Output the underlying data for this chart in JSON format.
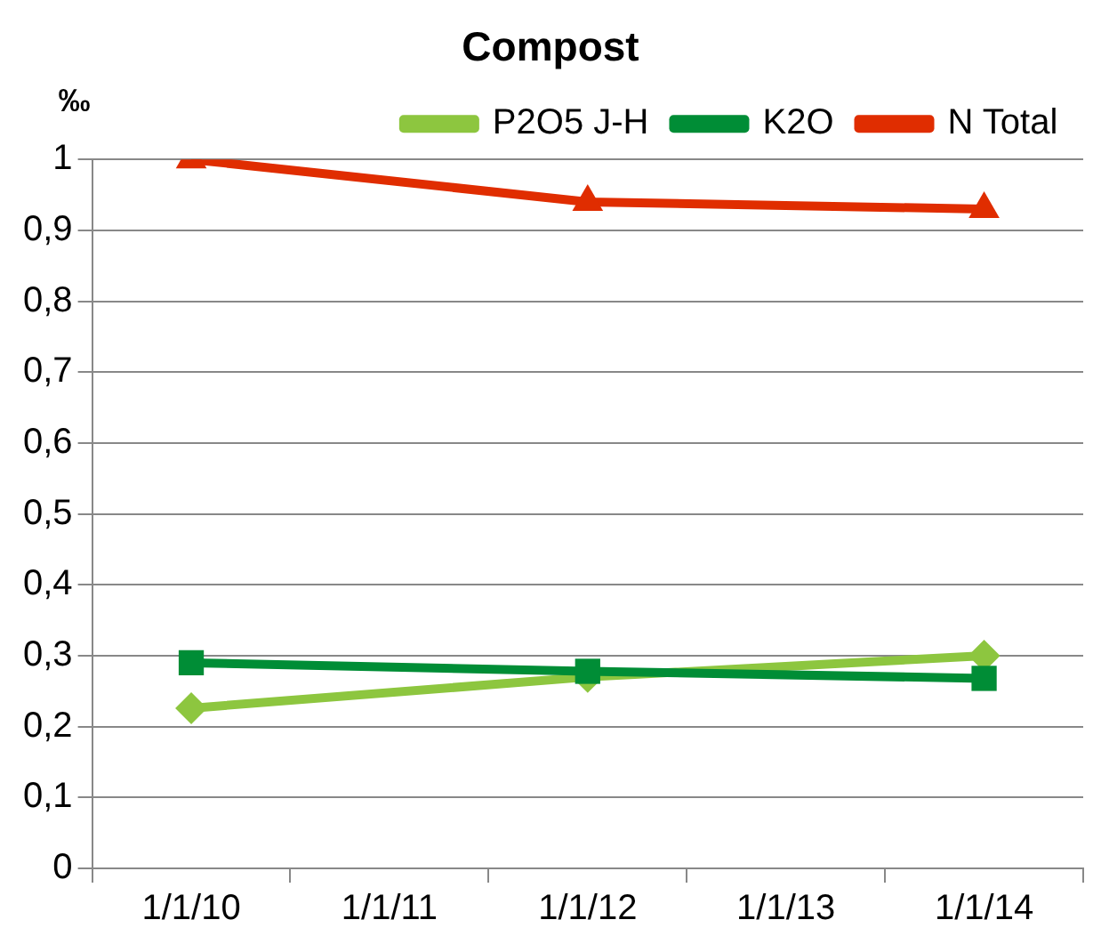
{
  "chart_data": {
    "type": "line",
    "title": "Compost",
    "ylabel": "‰",
    "categories": [
      "1/1/10",
      "1/1/11",
      "1/1/12",
      "1/1/13",
      "1/1/14"
    ],
    "series": [
      {
        "name": "P2O5 J-H",
        "color": "#8dc63f",
        "marker": "diamond",
        "values": [
          0.226,
          null,
          0.27,
          null,
          0.3
        ]
      },
      {
        "name": "K2O",
        "color": "#008d36",
        "marker": "square",
        "values": [
          0.29,
          null,
          0.278,
          null,
          0.268
        ]
      },
      {
        "name": "N Total",
        "color": "#e02d00",
        "marker": "triangle",
        "values": [
          1,
          null,
          0.94,
          null,
          0.93
        ]
      }
    ],
    "ylim": [
      0,
      1
    ],
    "yticks": [
      0,
      {
        "value": 0.1,
        "label": "0,1"
      },
      {
        "value": 0.2,
        "label": "0,2"
      },
      {
        "value": 0.3,
        "label": "0,3"
      },
      {
        "value": 0.4,
        "label": "0,4"
      },
      {
        "value": 0.5,
        "label": "0,5"
      },
      {
        "value": 0.6,
        "label": "0,6"
      },
      {
        "value": 0.7,
        "label": "0,7"
      },
      {
        "value": 0.8,
        "label": "0,8"
      },
      {
        "value": 0.9,
        "label": "0,9"
      },
      1
    ],
    "grid": "y",
    "legend": "top right",
    "line_style": "solid"
  }
}
